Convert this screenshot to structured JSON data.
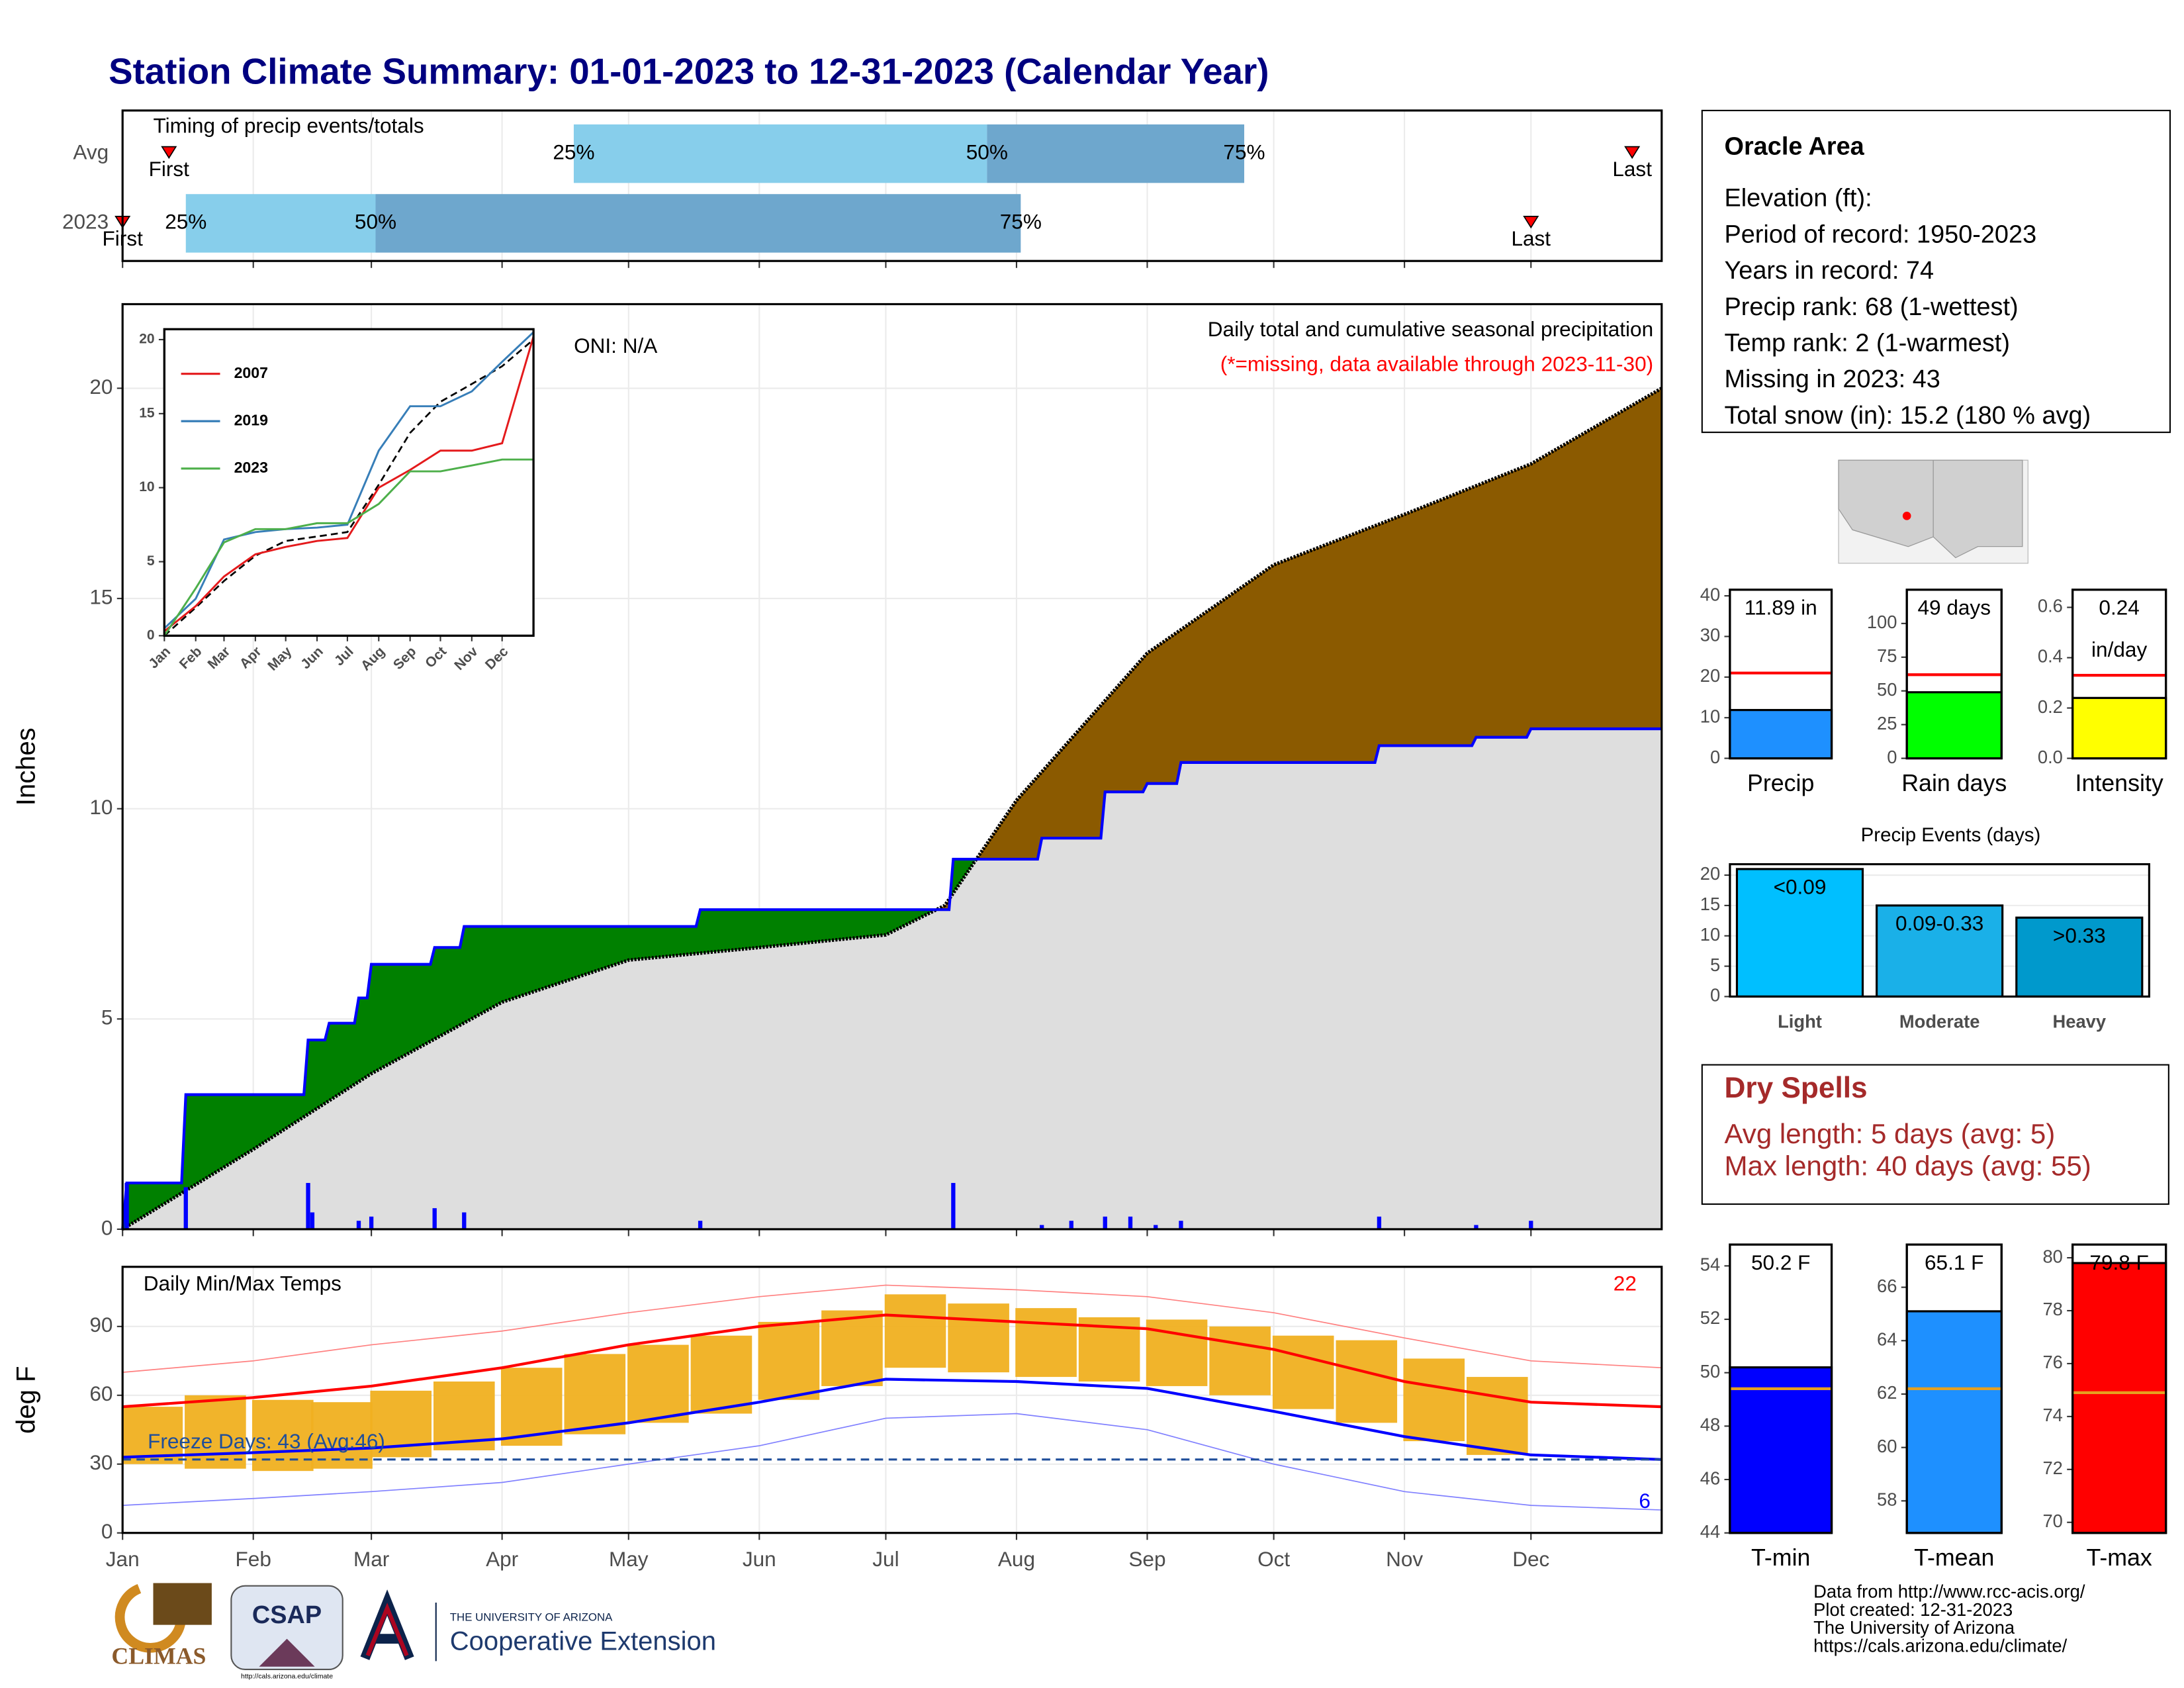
{
  "title": "Station Climate Summary: 01-01-2023 to 12-31-2023 (Calendar Year)",
  "chart_data": [
    {
      "type": "timeline",
      "title": "Timing of precip events/totals",
      "categories": [
        "Avg",
        "2023"
      ],
      "events": [
        {
          "label": "First",
          "values": [
            12,
            1
          ]
        },
        {
          "label": "25%",
          "values": [
            108,
            16
          ]
        },
        {
          "label": "50%",
          "values": [
            206,
            61
          ]
        },
        {
          "label": "75%",
          "values": [
            267,
            214
          ]
        },
        {
          "label": "Last",
          "values": [
            359,
            335
          ]
        }
      ],
      "colors": [
        "#87ceeb",
        "#6ea7cd"
      ],
      "marker_color": "#ff0000",
      "xlim": [
        1,
        366
      ],
      "xticks": [
        1,
        32,
        60,
        91,
        121,
        152,
        182,
        213,
        244,
        274,
        305,
        335
      ],
      "grid": true
    },
    {
      "type": "cumulative",
      "title": "Daily total and cumulative seasonal precipitation",
      "subtitle": "(*=missing, data available through 2023-11-30)",
      "annotation": "ONI: N/A",
      "ylabel": "Inches",
      "xlim": [
        1,
        366
      ],
      "ylim": [
        0,
        22
      ],
      "yticks": [
        0,
        5,
        10,
        15,
        20
      ],
      "xticks": [
        1,
        32,
        60,
        91,
        121,
        152,
        182,
        213,
        244,
        274,
        305,
        335
      ],
      "grid": true,
      "average": {
        "color": "#000000",
        "x": [
          1,
          32,
          60,
          91,
          121,
          152,
          182,
          196,
          213,
          244,
          274,
          305,
          335,
          366
        ],
        "values": [
          0,
          1.9,
          3.7,
          5.4,
          6.4,
          6.7,
          7.0,
          7.7,
          10.2,
          13.7,
          15.8,
          17.0,
          18.2,
          20.0
        ]
      },
      "observed": {
        "color": "#0000ff",
        "x": [
          1,
          2,
          15,
          16,
          44,
          45,
          49,
          50,
          56,
          57,
          59,
          60,
          74,
          75,
          81,
          82,
          137,
          138,
          197,
          198,
          218,
          219,
          233,
          234,
          243,
          244,
          251,
          252,
          298,
          299,
          321,
          322,
          334,
          335,
          366
        ],
        "values": [
          0,
          1.1,
          1.1,
          3.2,
          3.2,
          4.5,
          4.5,
          4.9,
          4.9,
          5.5,
          5.5,
          6.3,
          6.3,
          6.7,
          6.7,
          7.2,
          7.2,
          7.6,
          7.6,
          8.8,
          8.8,
          9.3,
          9.3,
          10.4,
          10.4,
          10.6,
          10.6,
          11.1,
          11.1,
          11.5,
          11.5,
          11.7,
          11.7,
          11.9,
          11.9
        ]
      },
      "daily": {
        "color": "#0000ff",
        "x": [
          2,
          16,
          45,
          46,
          57,
          60,
          75,
          82,
          138,
          198,
          219,
          226,
          234,
          240,
          246,
          252,
          299,
          322,
          335
        ],
        "values": [
          1.1,
          1.0,
          1.1,
          0.4,
          0.2,
          0.3,
          0.5,
          0.4,
          0.2,
          1.1,
          0.1,
          0.2,
          0.3,
          0.3,
          0.1,
          0.2,
          0.3,
          0.1,
          0.2
        ]
      },
      "fill_colors": {
        "below": "#dedede",
        "surplus": "#008000",
        "deficit": "#8b5a00"
      }
    },
    {
      "type": "line",
      "xlim": [
        1,
        366
      ],
      "ylim": [
        0,
        20.7
      ],
      "yticks": [
        0,
        5,
        10,
        15,
        20
      ],
      "xticks": [
        {
          "value": 1,
          "label": "Jan"
        },
        {
          "value": 32,
          "label": "Feb"
        },
        {
          "value": 60,
          "label": "Mar"
        },
        {
          "value": 91,
          "label": "Apr"
        },
        {
          "value": 121,
          "label": "May"
        },
        {
          "value": 152,
          "label": "Jun"
        },
        {
          "value": 182,
          "label": "Jul"
        },
        {
          "value": 213,
          "label": "Aug"
        },
        {
          "value": 244,
          "label": "Sep"
        },
        {
          "value": 274,
          "label": "Oct"
        },
        {
          "value": 305,
          "label": "Nov"
        },
        {
          "value": 335,
          "label": "Dec"
        }
      ],
      "x": [
        1,
        32,
        60,
        91,
        121,
        152,
        182,
        213,
        244,
        274,
        305,
        335,
        366
      ],
      "series": [
        {
          "name": "2007",
          "color": "#e41a1c",
          "values": [
            0.3,
            2.0,
            4.0,
            5.5,
            6.0,
            6.4,
            6.6,
            10.0,
            11.2,
            12.5,
            12.5,
            13.0,
            20.2
          ]
        },
        {
          "name": "2019",
          "color": "#377eb8",
          "values": [
            0.5,
            2.5,
            6.5,
            7.0,
            7.2,
            7.3,
            7.5,
            12.5,
            15.5,
            15.5,
            16.5,
            18.5,
            20.5
          ]
        },
        {
          "name": "2023",
          "color": "#4daf4a",
          "values": [
            0,
            3.2,
            6.3,
            7.2,
            7.2,
            7.6,
            7.6,
            8.9,
            11.1,
            11.1,
            11.5,
            11.9,
            11.9
          ]
        }
      ],
      "average": {
        "color": "#000000",
        "values": [
          0,
          1.9,
          3.7,
          5.4,
          6.4,
          6.7,
          7.0,
          10.2,
          13.7,
          15.8,
          17.0,
          18.2,
          20.0
        ]
      }
    },
    {
      "type": "temperature",
      "title": "Daily Min/Max Temps",
      "annotation": "Freeze Days: 43 (Avg:46)",
      "ylabel": "deg F",
      "top_count": 22,
      "bottom_count": 6,
      "xlim": [
        1,
        366
      ],
      "ylim": [
        0,
        116
      ],
      "yticks": [
        0,
        30,
        60,
        90
      ],
      "xticks": [
        {
          "value": 1,
          "label": "Jan"
        },
        {
          "value": 32,
          "label": "Feb"
        },
        {
          "value": 60,
          "label": "Mar"
        },
        {
          "value": 91,
          "label": "Apr"
        },
        {
          "value": 121,
          "label": "May"
        },
        {
          "value": 152,
          "label": "Jun"
        },
        {
          "value": 182,
          "label": "Jul"
        },
        {
          "value": 213,
          "label": "Aug"
        },
        {
          "value": 244,
          "label": "Sep"
        },
        {
          "value": 274,
          "label": "Oct"
        },
        {
          "value": 305,
          "label": "Nov"
        },
        {
          "value": 335,
          "label": "Dec"
        }
      ],
      "grid": true,
      "daily": {
        "color": "#f0b020",
        "x": [
          8,
          23,
          39,
          53,
          67,
          82,
          98,
          113,
          128,
          143,
          159,
          174,
          189,
          204,
          220,
          235,
          251,
          266,
          281,
          296,
          312,
          327
        ],
        "tmin": [
          30,
          28,
          27,
          28,
          33,
          36,
          38,
          43,
          48,
          52,
          58,
          64,
          72,
          70,
          68,
          66,
          64,
          60,
          54,
          48,
          40,
          34
        ],
        "tmax": [
          55,
          60,
          58,
          57,
          62,
          66,
          72,
          78,
          82,
          86,
          92,
          97,
          104,
          100,
          98,
          94,
          93,
          90,
          86,
          84,
          76,
          68
        ]
      },
      "x": [
        1,
        32,
        60,
        91,
        121,
        152,
        182,
        213,
        244,
        274,
        305,
        335,
        366
      ],
      "series": [
        {
          "color": "#ff0000",
          "width": 2,
          "values": [
            55,
            59,
            64,
            72,
            82,
            90,
            95,
            92,
            89,
            80,
            66,
            57,
            55
          ]
        },
        {
          "color": "#0000ff",
          "width": 2,
          "values": [
            33,
            35,
            37,
            41,
            48,
            57,
            67,
            66,
            63,
            53,
            42,
            34,
            32
          ]
        },
        {
          "color": "#ff8080",
          "width": 0.8,
          "values": [
            70,
            75,
            82,
            88,
            96,
            103,
            108,
            106,
            103,
            96,
            85,
            75,
            72
          ]
        },
        {
          "color": "#8080ff",
          "width": 0.8,
          "values": [
            12,
            15,
            18,
            22,
            30,
            38,
            50,
            52,
            45,
            30,
            18,
            12,
            10
          ]
        }
      ],
      "freeze_line": 32,
      "freeze_color": "#1f4e9a"
    },
    {
      "type": "gauge",
      "xlabel": "Precip",
      "values": [
        11.89
      ],
      "value_labels": [
        "11.89 in"
      ],
      "average": 21,
      "color": "#1e90ff",
      "average_color": "#ff0000",
      "ylim": [
        0,
        41.5
      ],
      "yticks": [
        0,
        10,
        20,
        30,
        40
      ]
    },
    {
      "type": "gauge",
      "xlabel": "Rain days",
      "values": [
        49
      ],
      "value_labels": [
        "49 days"
      ],
      "average": 62,
      "color": "#00ff00",
      "average_color": "#ff0000",
      "ylim": [
        0,
        125
      ],
      "yticks": [
        0,
        25,
        50,
        75,
        100
      ]
    },
    {
      "type": "gauge",
      "xlabel": "Intensity",
      "values": [
        0.24
      ],
      "unit_label": "in/day",
      "average": 0.33,
      "color": "#ffff00",
      "average_color": "#ff0000",
      "ylim": [
        0,
        0.67
      ],
      "yticks": [
        {
          "value": 0,
          "label": "0.0"
        },
        0.2,
        0.4,
        0.6
      ]
    },
    {
      "type": "bar",
      "title": "Precip Events (days)",
      "categories": [
        "Light",
        "Moderate",
        "Heavy"
      ],
      "values": [
        21,
        15,
        13
      ],
      "bar_labels": [
        "<0.09",
        "0.09-0.33",
        ">0.33"
      ],
      "colors": [
        "#00bfff",
        "#1ab0e8",
        "#0099cc"
      ],
      "ylim": [
        0,
        21.8
      ],
      "yticks": [
        0,
        5,
        10,
        15,
        20
      ],
      "grid": true
    },
    {
      "type": "gauge",
      "xlabel": "T-min",
      "values": [
        50.2
      ],
      "value_labels": [
        "50.2 F"
      ],
      "average": 49.4,
      "color": "#0000ff",
      "average_color": "#e6a020",
      "ylim": [
        44,
        54.8
      ],
      "yticks": [
        44,
        46,
        48,
        50,
        52,
        54
      ]
    },
    {
      "type": "gauge",
      "xlabel": "T-mean",
      "values": [
        65.1
      ],
      "value_labels": [
        "65.1 F"
      ],
      "average": 62.2,
      "color": "#1e90ff",
      "average_color": "#e6a020",
      "ylim": [
        56.8,
        67.6
      ],
      "yticks": [
        58,
        60,
        62,
        64,
        66
      ]
    },
    {
      "type": "gauge",
      "xlabel": "T-max",
      "values": [
        79.8
      ],
      "value_labels": [
        "79.8 F"
      ],
      "average": 74.9,
      "color": "#ff0000",
      "average_color": "#e6a020",
      "ylim": [
        69.6,
        80.5
      ],
      "yticks": [
        70,
        72,
        74,
        76,
        78,
        80
      ]
    }
  ],
  "info_box": {
    "title": "Oracle Area",
    "lines": [
      "Elevation (ft):",
      "Period of record: 1950-2023",
      "Years in record: 74",
      "Precip rank: 68 (1-wettest)",
      "Temp rank: 2 (1-warmest)",
      "Missing in 2023: 43",
      "Total snow (in): 15.2 (180 % avg)"
    ]
  },
  "dry_spells": {
    "title": "Dry Spells",
    "lines": [
      "Avg length: 5 days (avg: 5)",
      "Max length: 40 days (avg: 55)"
    ]
  },
  "credits": [
    "Data from http://www.rcc-acis.org/",
    "Plot created: 12-31-2023",
    "The University of Arizona",
    "https://cals.arizona.edu/climate/"
  ],
  "logos": {
    "climas": "CLIMAS",
    "csap": "CSAP",
    "csap_url": "http://cals.arizona.edu/climate",
    "ua": "THE UNIVERSITY OF ARIZONA",
    "extension": "Cooperative Extension"
  }
}
